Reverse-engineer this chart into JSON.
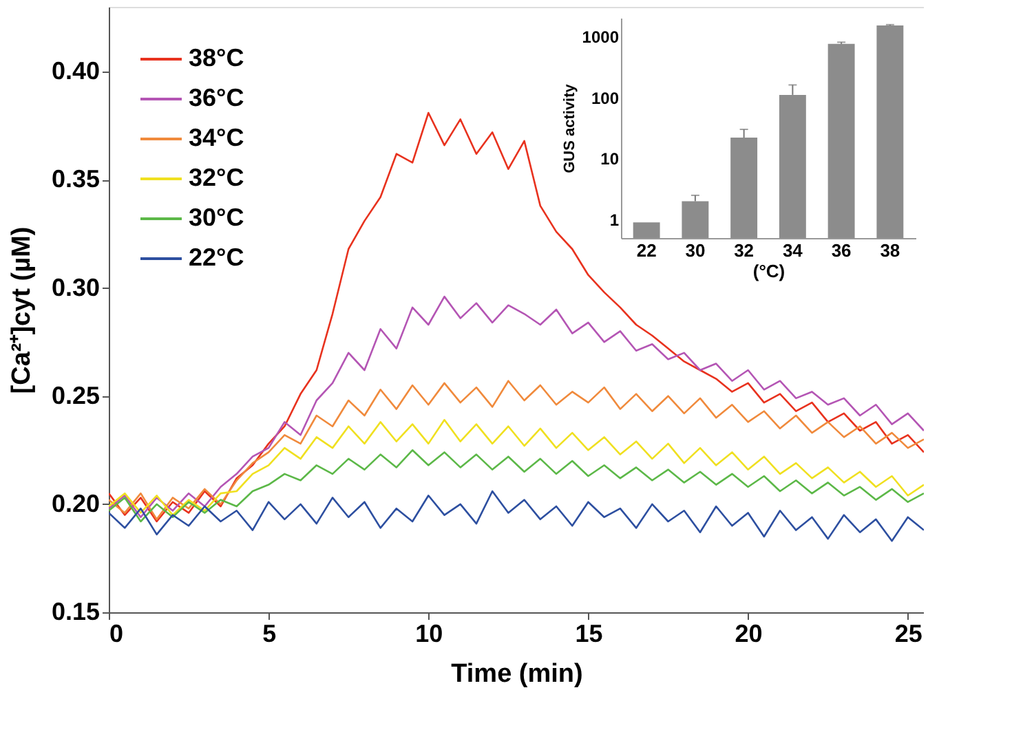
{
  "chart_data": [
    {
      "type": "line",
      "xlabel": "Time  (min)",
      "ylabel": "[Ca²⁺]cyt (µM)",
      "x": [
        0,
        0.5,
        1,
        1.5,
        2,
        2.5,
        3,
        3.5,
        4,
        4.5,
        5,
        5.5,
        6,
        6.5,
        7,
        7.5,
        8,
        8.5,
        9,
        9.5,
        10,
        10.5,
        11,
        11.5,
        12,
        12.5,
        13,
        13.5,
        14,
        14.5,
        15,
        15.5,
        16,
        16.5,
        17,
        17.5,
        18,
        18.5,
        19,
        19.5,
        20,
        20.5,
        21,
        21.5,
        22,
        22.5,
        23,
        23.5,
        24,
        24.5,
        25,
        25.5
      ],
      "series": [
        {
          "name": "38°C",
          "color": "#e8321e",
          "values": [
            0.205,
            0.195,
            0.203,
            0.192,
            0.201,
            0.196,
            0.206,
            0.199,
            0.212,
            0.218,
            0.228,
            0.236,
            0.251,
            0.262,
            0.288,
            0.318,
            0.331,
            0.342,
            0.362,
            0.358,
            0.381,
            0.366,
            0.378,
            0.362,
            0.372,
            0.355,
            0.368,
            0.338,
            0.326,
            0.318,
            0.306,
            0.298,
            0.291,
            0.283,
            0.278,
            0.272,
            0.266,
            0.262,
            0.258,
            0.252,
            0.256,
            0.247,
            0.251,
            0.243,
            0.247,
            0.238,
            0.242,
            0.234,
            0.238,
            0.228,
            0.232,
            0.224
          ]
        },
        {
          "name": "36°C",
          "color": "#b455b4",
          "values": [
            0.198,
            0.204,
            0.194,
            0.203,
            0.197,
            0.205,
            0.199,
            0.208,
            0.214,
            0.222,
            0.226,
            0.238,
            0.232,
            0.248,
            0.256,
            0.27,
            0.262,
            0.281,
            0.272,
            0.291,
            0.283,
            0.296,
            0.286,
            0.293,
            0.284,
            0.292,
            0.288,
            0.283,
            0.29,
            0.279,
            0.284,
            0.275,
            0.28,
            0.271,
            0.274,
            0.267,
            0.27,
            0.262,
            0.265,
            0.257,
            0.262,
            0.253,
            0.257,
            0.249,
            0.252,
            0.246,
            0.249,
            0.241,
            0.246,
            0.237,
            0.242,
            0.234
          ]
        },
        {
          "name": "34°C",
          "color": "#f08a3c",
          "values": [
            0.202,
            0.196,
            0.205,
            0.193,
            0.203,
            0.198,
            0.207,
            0.2,
            0.211,
            0.219,
            0.224,
            0.232,
            0.228,
            0.241,
            0.236,
            0.248,
            0.241,
            0.253,
            0.244,
            0.255,
            0.246,
            0.256,
            0.247,
            0.254,
            0.245,
            0.257,
            0.248,
            0.255,
            0.246,
            0.252,
            0.247,
            0.254,
            0.244,
            0.251,
            0.243,
            0.25,
            0.242,
            0.249,
            0.24,
            0.246,
            0.238,
            0.243,
            0.235,
            0.241,
            0.233,
            0.238,
            0.231,
            0.236,
            0.228,
            0.233,
            0.226,
            0.23
          ]
        },
        {
          "name": "32°C",
          "color": "#f0e020",
          "values": [
            0.199,
            0.205,
            0.196,
            0.204,
            0.195,
            0.202,
            0.197,
            0.205,
            0.206,
            0.214,
            0.218,
            0.226,
            0.221,
            0.231,
            0.226,
            0.236,
            0.228,
            0.238,
            0.229,
            0.237,
            0.228,
            0.239,
            0.229,
            0.237,
            0.228,
            0.236,
            0.227,
            0.235,
            0.226,
            0.233,
            0.225,
            0.231,
            0.223,
            0.229,
            0.221,
            0.228,
            0.219,
            0.226,
            0.218,
            0.224,
            0.216,
            0.222,
            0.214,
            0.219,
            0.212,
            0.217,
            0.21,
            0.215,
            0.208,
            0.213,
            0.204,
            0.209
          ]
        },
        {
          "name": "30°C",
          "color": "#5cb848",
          "values": [
            0.197,
            0.203,
            0.192,
            0.2,
            0.194,
            0.201,
            0.196,
            0.202,
            0.199,
            0.206,
            0.209,
            0.214,
            0.211,
            0.218,
            0.214,
            0.221,
            0.216,
            0.223,
            0.217,
            0.225,
            0.218,
            0.224,
            0.217,
            0.223,
            0.216,
            0.222,
            0.215,
            0.221,
            0.214,
            0.22,
            0.213,
            0.218,
            0.212,
            0.217,
            0.211,
            0.216,
            0.21,
            0.215,
            0.209,
            0.214,
            0.208,
            0.213,
            0.206,
            0.211,
            0.205,
            0.21,
            0.204,
            0.208,
            0.202,
            0.207,
            0.201,
            0.205
          ]
        },
        {
          "name": "22°C",
          "color": "#2d4fa0",
          "values": [
            0.196,
            0.189,
            0.198,
            0.186,
            0.195,
            0.19,
            0.199,
            0.192,
            0.197,
            0.188,
            0.201,
            0.193,
            0.2,
            0.191,
            0.203,
            0.194,
            0.201,
            0.189,
            0.198,
            0.192,
            0.204,
            0.195,
            0.2,
            0.191,
            0.206,
            0.196,
            0.202,
            0.193,
            0.199,
            0.19,
            0.201,
            0.194,
            0.198,
            0.189,
            0.2,
            0.192,
            0.197,
            0.187,
            0.199,
            0.19,
            0.196,
            0.185,
            0.197,
            0.188,
            0.194,
            0.184,
            0.195,
            0.187,
            0.193,
            0.183,
            0.194,
            0.188
          ]
        }
      ],
      "xlim": [
        0,
        25.5
      ],
      "xticks": [
        0,
        5,
        10,
        15,
        20,
        25
      ],
      "ylim": [
        0.15,
        0.43
      ],
      "yticks": [
        {
          "value": 0.15,
          "label": "0.15"
        },
        {
          "value": 0.2,
          "label": "0.20"
        },
        {
          "value": 0.25,
          "label": "0.25"
        },
        {
          "value": 0.3,
          "label": "0.30"
        },
        {
          "value": 0.35,
          "label": "0.35"
        },
        {
          "value": 0.4,
          "label": "0.40"
        }
      ],
      "grid": false,
      "legend": "top left",
      "line_style": "solid",
      "marker": "none"
    },
    {
      "type": "bar",
      "xlabel": "(°C)",
      "ylabel": "GUS activity",
      "categories": [
        "22",
        "30",
        "32",
        "34",
        "36",
        "38"
      ],
      "values": [
        0.9,
        2,
        22,
        110,
        750,
        1500
      ],
      "color": "#8c8c8c",
      "errors": [
        null,
        [
          2,
          2.5
        ],
        [
          22,
          30
        ],
        [
          110,
          160
        ],
        [
          750,
          800
        ],
        [
          1500,
          1550
        ]
      ],
      "log": true,
      "ylim": [
        0.5,
        2000
      ],
      "yticks": [
        1,
        10,
        100,
        1000
      ],
      "grid": false
    }
  ]
}
